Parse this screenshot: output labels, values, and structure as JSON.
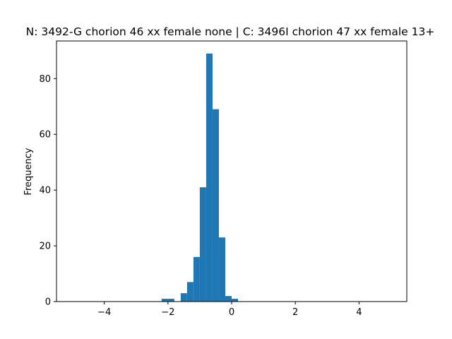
{
  "chart_data": {
    "type": "bar",
    "title": "N: 3492-G chorion 46 xx female none | C: 3496I chorion 47 xx female 13+",
    "xlabel": "",
    "ylabel": "Frequency",
    "xlim": [
      -5.5,
      5.5
    ],
    "ylim": [
      0,
      93.5
    ],
    "grid": false,
    "bar_color": "#1f77b4",
    "x_ticks": [
      -4,
      -2,
      0,
      2,
      4
    ],
    "x_tick_labels": [
      "−4",
      "−2",
      "0",
      "2",
      "4"
    ],
    "y_ticks": [
      0,
      20,
      40,
      60,
      80
    ],
    "y_tick_labels": [
      "0",
      "20",
      "40",
      "60",
      "80"
    ],
    "bins": [
      {
        "x0": -2.2,
        "x1": -2.0,
        "value": 1
      },
      {
        "x0": -2.0,
        "x1": -1.8,
        "value": 1
      },
      {
        "x0": -1.6,
        "x1": -1.4,
        "value": 3
      },
      {
        "x0": -1.4,
        "x1": -1.2,
        "value": 7
      },
      {
        "x0": -1.2,
        "x1": -1.0,
        "value": 16
      },
      {
        "x0": -1.0,
        "x1": -0.8,
        "value": 41
      },
      {
        "x0": -0.8,
        "x1": -0.6,
        "value": 89
      },
      {
        "x0": -0.6,
        "x1": -0.4,
        "value": 69
      },
      {
        "x0": -0.4,
        "x1": -0.2,
        "value": 23
      },
      {
        "x0": -0.2,
        "x1": 0.0,
        "value": 2
      },
      {
        "x0": 0.0,
        "x1": 0.2,
        "value": 1
      }
    ]
  }
}
